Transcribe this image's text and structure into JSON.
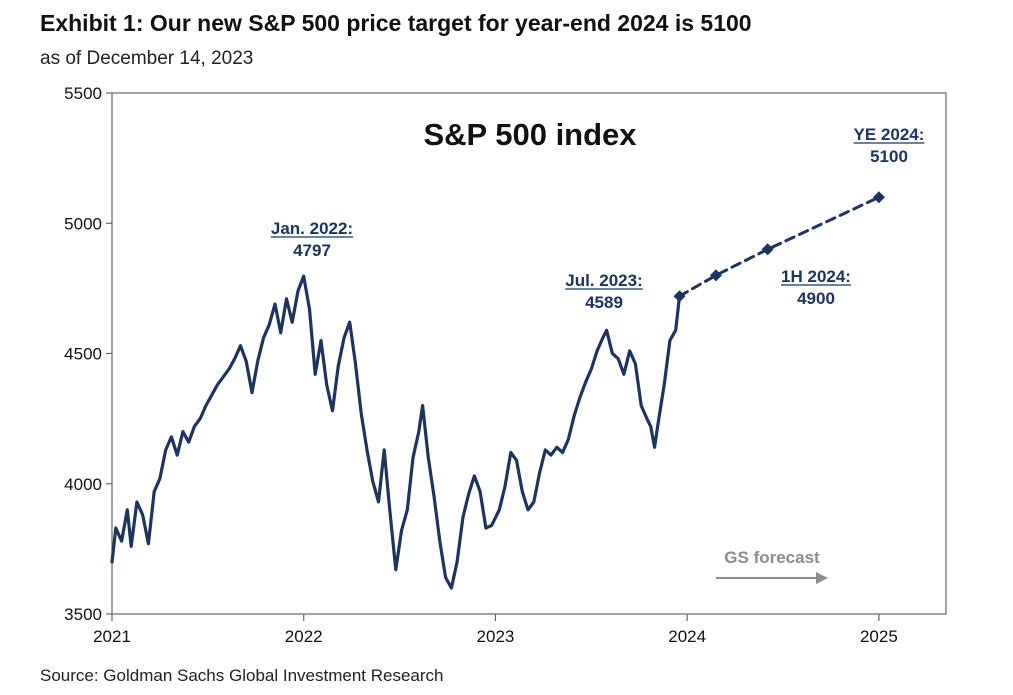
{
  "header": {
    "title": "Exhibit 1: Our new S&P 500 price target for year-end 2024 is 5100",
    "subtitle": "as of December 14, 2023"
  },
  "footer": {
    "source": "Source: Goldman Sachs Global Investment Research"
  },
  "colors": {
    "series": "#1d3461",
    "forecast_label": "#8c8c8c",
    "axis": "#666666"
  },
  "chart_data": {
    "type": "line",
    "title": "S&P 500 index",
    "xlabel": "",
    "ylabel": "",
    "xlim": [
      2021,
      2025.35
    ],
    "ylim": [
      3500,
      5500
    ],
    "x_ticks": [
      "2021",
      "2022",
      "2023",
      "2024",
      "2025"
    ],
    "y_ticks": [
      "3500",
      "4000",
      "4500",
      "5000",
      "5500"
    ],
    "grid": false,
    "series": [
      {
        "style": "solid",
        "points": [
          [
            2021.0,
            3700
          ],
          [
            2021.02,
            3830
          ],
          [
            2021.05,
            3780
          ],
          [
            2021.08,
            3900
          ],
          [
            2021.1,
            3760
          ],
          [
            2021.13,
            3930
          ],
          [
            2021.16,
            3880
          ],
          [
            2021.19,
            3770
          ],
          [
            2021.22,
            3970
          ],
          [
            2021.25,
            4020
          ],
          [
            2021.28,
            4130
          ],
          [
            2021.31,
            4180
          ],
          [
            2021.34,
            4110
          ],
          [
            2021.37,
            4200
          ],
          [
            2021.4,
            4160
          ],
          [
            2021.43,
            4220
          ],
          [
            2021.46,
            4250
          ],
          [
            2021.49,
            4300
          ],
          [
            2021.52,
            4340
          ],
          [
            2021.55,
            4380
          ],
          [
            2021.58,
            4410
          ],
          [
            2021.61,
            4440
          ],
          [
            2021.64,
            4480
          ],
          [
            2021.67,
            4530
          ],
          [
            2021.7,
            4470
          ],
          [
            2021.73,
            4350
          ],
          [
            2021.76,
            4470
          ],
          [
            2021.79,
            4560
          ],
          [
            2021.82,
            4610
          ],
          [
            2021.85,
            4690
          ],
          [
            2021.88,
            4580
          ],
          [
            2021.91,
            4710
          ],
          [
            2021.94,
            4620
          ],
          [
            2021.97,
            4740
          ],
          [
            2022.0,
            4797
          ],
          [
            2022.03,
            4670
          ],
          [
            2022.06,
            4420
          ],
          [
            2022.09,
            4550
          ],
          [
            2022.12,
            4380
          ],
          [
            2022.15,
            4280
          ],
          [
            2022.18,
            4450
          ],
          [
            2022.21,
            4560
          ],
          [
            2022.24,
            4620
          ],
          [
            2022.27,
            4460
          ],
          [
            2022.3,
            4270
          ],
          [
            2022.33,
            4130
          ],
          [
            2022.36,
            4010
          ],
          [
            2022.39,
            3930
          ],
          [
            2022.42,
            4130
          ],
          [
            2022.45,
            3890
          ],
          [
            2022.48,
            3670
          ],
          [
            2022.51,
            3820
          ],
          [
            2022.54,
            3900
          ],
          [
            2022.57,
            4100
          ],
          [
            2022.6,
            4200
          ],
          [
            2022.62,
            4300
          ],
          [
            2022.65,
            4100
          ],
          [
            2022.68,
            3950
          ],
          [
            2022.71,
            3780
          ],
          [
            2022.74,
            3640
          ],
          [
            2022.77,
            3600
          ],
          [
            2022.8,
            3700
          ],
          [
            2022.83,
            3870
          ],
          [
            2022.86,
            3960
          ],
          [
            2022.89,
            4030
          ],
          [
            2022.92,
            3970
          ],
          [
            2022.95,
            3830
          ],
          [
            2022.98,
            3840
          ],
          [
            2023.02,
            3900
          ],
          [
            2023.05,
            3990
          ],
          [
            2023.08,
            4120
          ],
          [
            2023.11,
            4090
          ],
          [
            2023.14,
            3970
          ],
          [
            2023.17,
            3900
          ],
          [
            2023.2,
            3930
          ],
          [
            2023.23,
            4040
          ],
          [
            2023.26,
            4130
          ],
          [
            2023.29,
            4110
          ],
          [
            2023.32,
            4140
          ],
          [
            2023.35,
            4120
          ],
          [
            2023.38,
            4170
          ],
          [
            2023.41,
            4260
          ],
          [
            2023.44,
            4330
          ],
          [
            2023.47,
            4390
          ],
          [
            2023.5,
            4440
          ],
          [
            2023.53,
            4510
          ],
          [
            2023.56,
            4560
          ],
          [
            2023.58,
            4589
          ],
          [
            2023.61,
            4500
          ],
          [
            2023.64,
            4480
          ],
          [
            2023.67,
            4420
          ],
          [
            2023.7,
            4510
          ],
          [
            2023.73,
            4460
          ],
          [
            2023.76,
            4300
          ],
          [
            2023.79,
            4250
          ],
          [
            2023.81,
            4220
          ],
          [
            2023.83,
            4140
          ],
          [
            2023.85,
            4240
          ],
          [
            2023.88,
            4380
          ],
          [
            2023.91,
            4550
          ],
          [
            2023.94,
            4590
          ],
          [
            2023.96,
            4720
          ]
        ]
      },
      {
        "name": "GS forecast",
        "style": "dashed",
        "points": [
          [
            2023.96,
            4720
          ],
          [
            2024.15,
            4800
          ],
          [
            2024.42,
            4900
          ],
          [
            2025.0,
            5100
          ]
        ]
      }
    ],
    "annotations": [
      {
        "label": "Jan. 2022:",
        "value": "4797"
      },
      {
        "label": "Jul. 2023:",
        "value": "4589"
      },
      {
        "label": "1H 2024:",
        "value": "4900"
      },
      {
        "label": "YE 2024:",
        "value": "5100"
      }
    ],
    "forecast_label": "GS forecast"
  }
}
